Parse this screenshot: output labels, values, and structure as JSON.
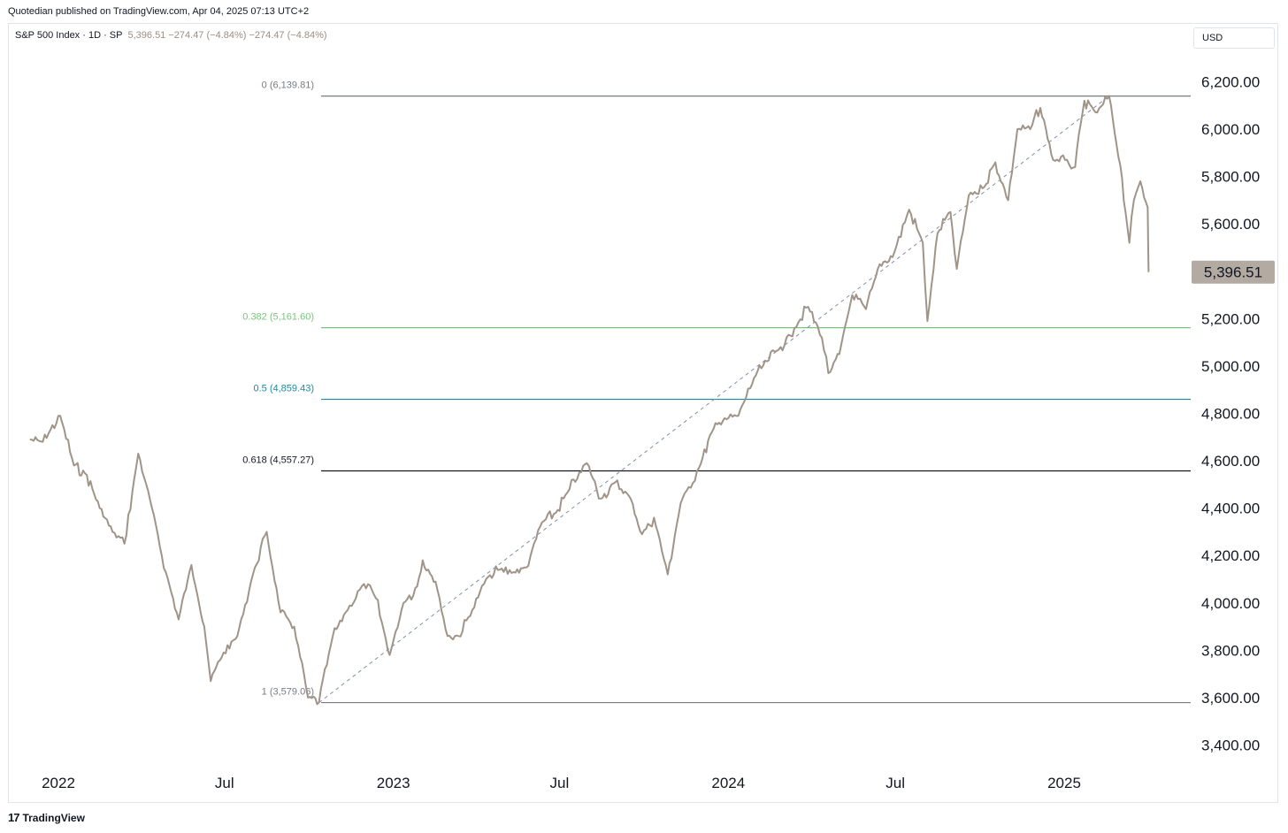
{
  "header": {
    "publish_text": "Quotedian published on TradingView.com, Apr 04, 2025 07:13 UTC+2",
    "symbol": "S&P 500 Index · 1D · SP",
    "values": "5,396.51 −274.47 (−4.84%) −274.47 (−4.84%)",
    "currency": "USD"
  },
  "footer": {
    "logo_text": "TradingView",
    "logo_glyph": "17"
  },
  "colors": {
    "price_line": "#a09488",
    "fib_green": "#7bc47f",
    "fib_teal": "#1f8aa0",
    "fib_black": "#131722",
    "fib_grey": "#787b86",
    "trend_dash": "#7f8fa6",
    "axis_text": "#131722",
    "last_price_bg": "#b3aaa2"
  },
  "chart_data": {
    "type": "line",
    "title": "S&P 500 Index · 1D · SP",
    "series": [
      {
        "name": "S&P 500 Index",
        "x": [
          "2021-12-01",
          "2021-12-15",
          "2022-01-03",
          "2022-01-18",
          "2022-02-01",
          "2022-02-15",
          "2022-03-01",
          "2022-03-14",
          "2022-03-29",
          "2022-04-13",
          "2022-04-28",
          "2022-05-12",
          "2022-05-26",
          "2022-06-09",
          "2022-06-16",
          "2022-06-30",
          "2022-07-15",
          "2022-08-01",
          "2022-08-16",
          "2022-08-31",
          "2022-09-15",
          "2022-09-30",
          "2022-10-12",
          "2022-10-27",
          "2022-11-10",
          "2022-11-30",
          "2022-12-13",
          "2022-12-28",
          "2023-01-12",
          "2023-01-27",
          "2023-02-02",
          "2023-02-16",
          "2023-03-01",
          "2023-03-13",
          "2023-03-28",
          "2023-04-12",
          "2023-04-27",
          "2023-05-12",
          "2023-05-26",
          "2023-06-12",
          "2023-06-27",
          "2023-07-12",
          "2023-07-31",
          "2023-08-15",
          "2023-08-31",
          "2023-09-15",
          "2023-09-29",
          "2023-10-12",
          "2023-10-27",
          "2023-11-10",
          "2023-11-30",
          "2023-12-14",
          "2023-12-28",
          "2024-01-12",
          "2024-01-29",
          "2024-02-12",
          "2024-02-27",
          "2024-03-13",
          "2024-03-28",
          "2024-04-12",
          "2024-04-19",
          "2024-05-01",
          "2024-05-15",
          "2024-05-30",
          "2024-06-14",
          "2024-06-28",
          "2024-07-16",
          "2024-07-31",
          "2024-08-05",
          "2024-08-16",
          "2024-08-30",
          "2024-09-06",
          "2024-09-19",
          "2024-10-04",
          "2024-10-18",
          "2024-11-01",
          "2024-11-11",
          "2024-11-25",
          "2024-12-06",
          "2024-12-20",
          "2025-01-02",
          "2025-01-13",
          "2025-01-23",
          "2025-02-06",
          "2025-02-19",
          "2025-03-03",
          "2025-03-13",
          "2025-03-18",
          "2025-03-25",
          "2025-04-02",
          "2025-04-03"
        ],
        "values": [
          4690,
          4680,
          4790,
          4580,
          4540,
          4400,
          4300,
          4250,
          4630,
          4400,
          4130,
          3930,
          4160,
          3900,
          3670,
          3790,
          3860,
          4120,
          4300,
          3960,
          3900,
          3600,
          3580,
          3860,
          3960,
          4080,
          4020,
          3780,
          4000,
          4070,
          4180,
          4090,
          3860,
          3860,
          3970,
          4100,
          4140,
          4130,
          4150,
          4340,
          4380,
          4480,
          4590,
          4440,
          4510,
          4450,
          4290,
          4360,
          4120,
          4420,
          4570,
          4720,
          4780,
          4790,
          4950,
          5020,
          5080,
          5160,
          5250,
          5120,
          4970,
          5050,
          5300,
          5240,
          5430,
          5460,
          5660,
          5520,
          5190,
          5560,
          5650,
          5410,
          5720,
          5750,
          5860,
          5700,
          6000,
          6000,
          6090,
          5870,
          5870,
          5840,
          6120,
          6070,
          6140,
          5850,
          5520,
          5700,
          5780,
          5670,
          5396.51
        ]
      }
    ],
    "ylim": [
      3400,
      6200
    ],
    "x_tick_labels": [
      "2022",
      "Jul",
      "2023",
      "Jul",
      "2024",
      "Jul",
      "2025"
    ],
    "y_tick_labels": [
      "6,200.00",
      "6,000.00",
      "5,800.00",
      "5,600.00",
      "5,400.00",
      "5,200.00",
      "5,000.00",
      "4,800.00",
      "4,600.00",
      "4,400.00",
      "4,200.00",
      "4,000.00",
      "3,800.00",
      "3,600.00",
      "3,400.00"
    ],
    "y_ticks": [
      6200,
      6000,
      5800,
      5600,
      5400,
      5200,
      5000,
      4800,
      4600,
      4400,
      4200,
      4000,
      3800,
      3600,
      3400
    ],
    "y_tick_labels_shown": [
      "6,200.00",
      "6,000.00",
      "5,800.00",
      "5,600.00",
      "5,200.00",
      "5,000.00",
      "4,800.00",
      "4,600.00",
      "4,400.00",
      "4,200.00",
      "4,000.00",
      "3,800.00",
      "3,600.00",
      "3,400.00"
    ],
    "last_price": 5396.51,
    "last_price_label": "5,396.51",
    "fibonacci": {
      "start": {
        "date": "2022-10-12",
        "price": 3579.06
      },
      "end": {
        "date": "2025-02-19",
        "price": 6139.81
      },
      "levels": [
        {
          "label": "0 (6,139.81)",
          "price": 6139.81,
          "color": "#787b86"
        },
        {
          "label": "0.382 (5,161.60)",
          "price": 5161.6,
          "color": "#7bc47f"
        },
        {
          "label": "0.5 (4,859.43)",
          "price": 4859.43,
          "color": "#1f8aa0"
        },
        {
          "label": "0.618 (4,557.27)",
          "price": 4557.27,
          "color": "#131722"
        },
        {
          "label": "1 (3,579.06)",
          "price": 3579.06,
          "color": "#787b86"
        }
      ]
    },
    "grid": false,
    "legend": "top-left"
  }
}
